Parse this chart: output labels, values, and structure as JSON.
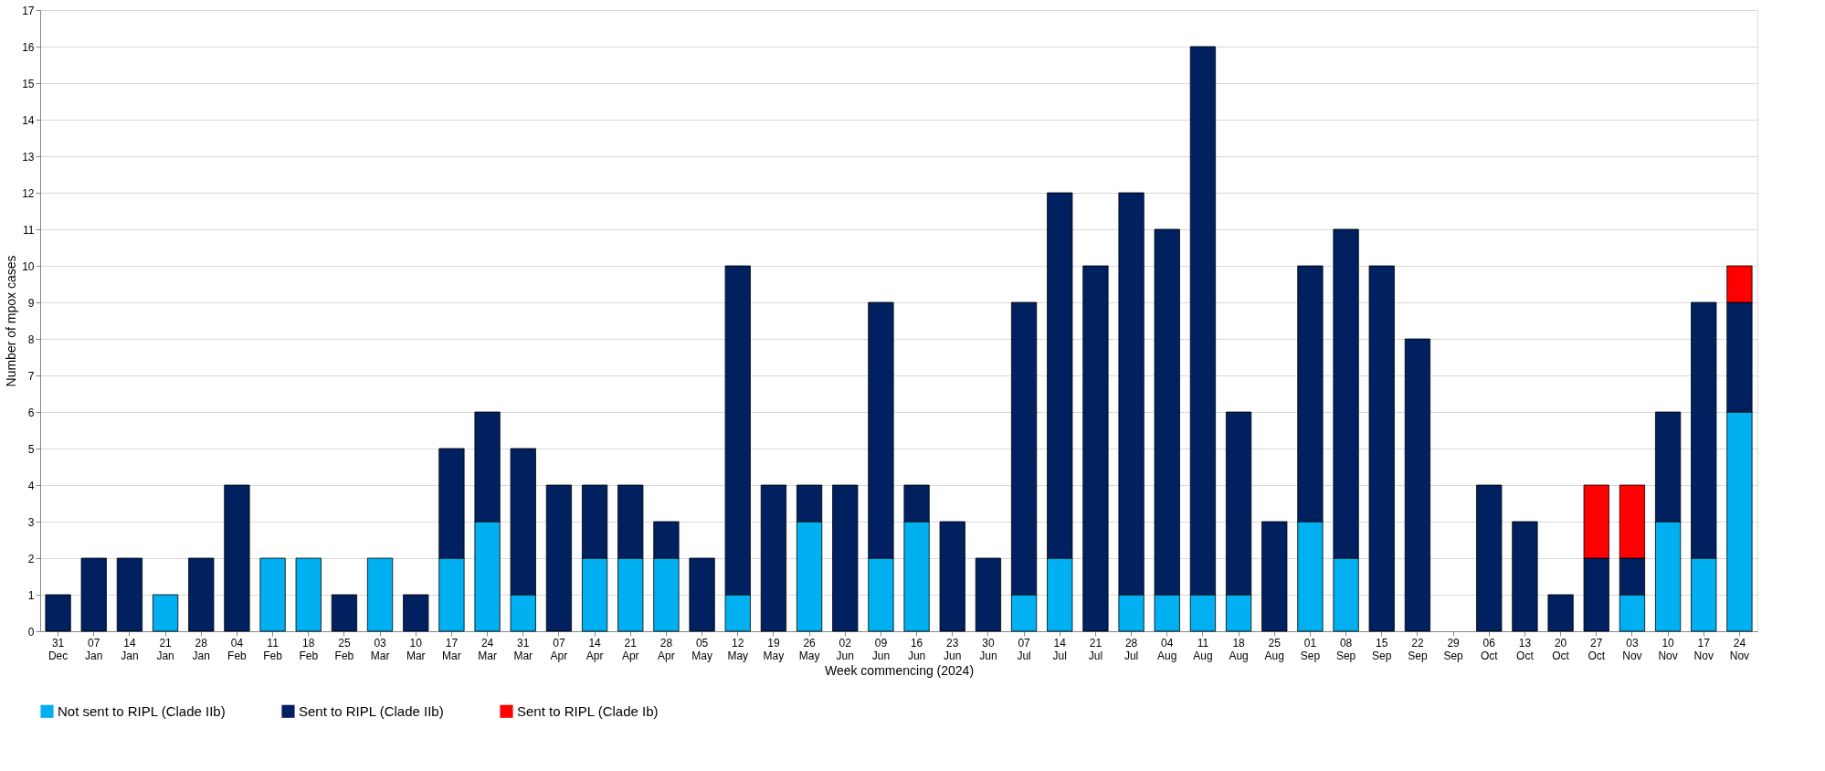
{
  "chart_data": {
    "type": "bar",
    "stacked": true,
    "xlabel": "Week commencing (2024)",
    "ylabel": "Number of mpox cases",
    "categories": [
      "31 Dec",
      "07 Jan",
      "14 Jan",
      "21 Jan",
      "28 Jan",
      "04 Feb",
      "11 Feb",
      "18 Feb",
      "25 Feb",
      "03 Mar",
      "10 Mar",
      "17 Mar",
      "24 Mar",
      "31 Mar",
      "07 Apr",
      "14 Apr",
      "21 Apr",
      "28 Apr",
      "05 May",
      "12 May",
      "19 May",
      "26 May",
      "02 Jun",
      "09 Jun",
      "16 Jun",
      "23 Jun",
      "30 Jun",
      "07 Jul",
      "14 Jul",
      "21 Jul",
      "28 Jul",
      "04 Aug",
      "11 Aug",
      "18 Aug",
      "25 Aug",
      "01 Sep",
      "08 Sep",
      "15 Sep",
      "22 Sep",
      "29 Sep",
      "06 Oct",
      "13 Oct",
      "20 Oct",
      "27 Oct",
      "03 Nov",
      "10 Nov",
      "17 Nov",
      "24 Nov"
    ],
    "series": [
      {
        "name": "Not sent to RIPL (Clade IIb)",
        "color": "#00b0f0",
        "values": [
          null,
          null,
          null,
          1,
          null,
          null,
          2,
          2,
          null,
          2,
          null,
          2,
          3,
          1,
          null,
          2,
          2,
          2,
          null,
          1,
          null,
          3,
          null,
          2,
          3,
          null,
          null,
          1,
          2,
          null,
          1,
          1,
          1,
          1,
          null,
          3,
          2,
          null,
          null,
          null,
          null,
          null,
          null,
          null,
          1,
          3,
          2,
          6
        ]
      },
      {
        "name": "Sent to RIPL (Clade IIb)",
        "color": "#002060",
        "values": [
          1,
          2,
          2,
          null,
          2,
          4,
          null,
          null,
          1,
          null,
          1,
          3,
          3,
          4,
          4,
          2,
          2,
          1,
          2,
          9,
          4,
          1,
          4,
          7,
          1,
          3,
          2,
          8,
          10,
          10,
          11,
          10,
          15,
          5,
          3,
          7,
          9,
          10,
          8,
          null,
          4,
          3,
          1,
          2,
          1,
          3,
          7,
          3
        ]
      },
      {
        "name": "Sent to RIPL (Clade Ib)",
        "color": "#ff0000",
        "values": [
          null,
          null,
          null,
          null,
          null,
          null,
          null,
          null,
          null,
          null,
          null,
          null,
          null,
          null,
          null,
          null,
          null,
          null,
          null,
          null,
          null,
          null,
          null,
          null,
          null,
          null,
          null,
          null,
          null,
          null,
          null,
          null,
          null,
          null,
          null,
          null,
          null,
          null,
          null,
          null,
          null,
          null,
          null,
          2,
          2,
          null,
          null,
          1
        ]
      }
    ],
    "ylim": [
      0,
      17
    ],
    "yticks": [
      0,
      1,
      2,
      3,
      4,
      5,
      6,
      7,
      8,
      9,
      10,
      11,
      12,
      13,
      14,
      15,
      16,
      17
    ],
    "grid": "y",
    "legend": "bottom"
  }
}
